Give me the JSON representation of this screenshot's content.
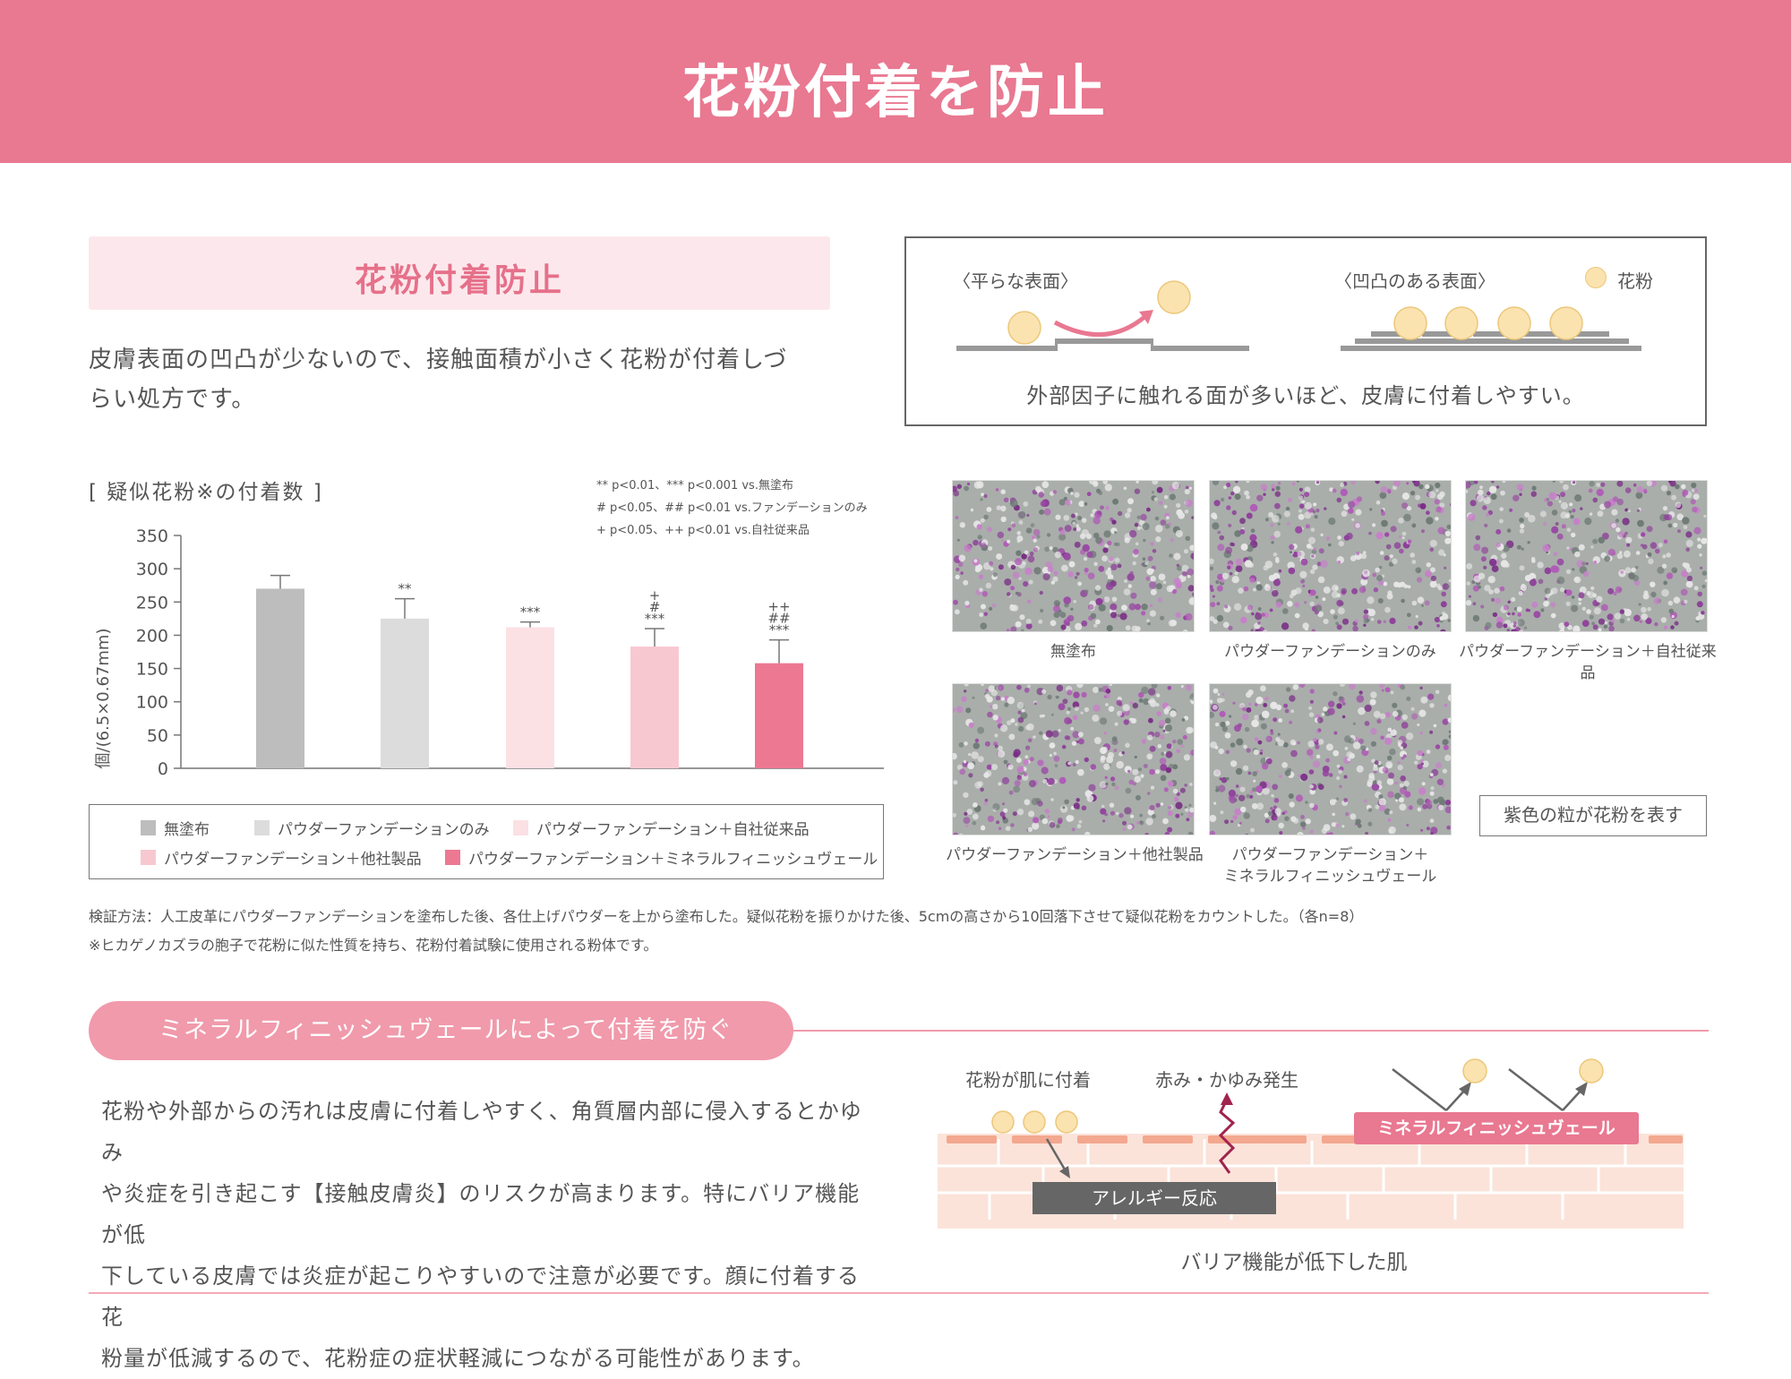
{
  "header": {
    "title": "花粉付着を防止"
  },
  "section1": {
    "heading": "花粉付着防止",
    "intro_line1": "皮膚表面の凹凸が少ないので、接触面積が小さく花粉が付着しづ",
    "intro_line2": "らい処方です。"
  },
  "diagram": {
    "flat_label": "〈平らな表面〉",
    "rough_label": "〈凹凸のある表面〉",
    "pollen_legend": "花粉",
    "caption": "外部因子に触れる面が多いほど、皮膚に付着しやすい。"
  },
  "chart_data": {
    "type": "bar",
    "title": "[ 疑似花粉※の付着数 ]",
    "ylabel": "個/(6.5×0.67mm)",
    "ylim": [
      0,
      350
    ],
    "yticks": [
      "0",
      "50",
      "100",
      "150",
      "200",
      "250",
      "300",
      "350"
    ],
    "categories": [
      "無塗布",
      "パウダーファンデーションのみ",
      "パウダーファンデーション＋自社従来品",
      "パウダーファンデーション＋他社製品",
      "パウダーファンデーション＋ミネラルフィニッシュヴェール"
    ],
    "values": [
      270,
      225,
      212,
      183,
      158
    ],
    "errors": [
      20,
      30,
      8,
      27,
      35
    ],
    "colors": [
      "#bdbdbd",
      "#dcdcdc",
      "#fbe0e4",
      "#f8c8d1",
      "#ec7891"
    ],
    "significance": [
      [
        ""
      ],
      [
        "**"
      ],
      [
        "***"
      ],
      [
        "+",
        "#",
        "***"
      ],
      [
        "++",
        "##",
        "***"
      ]
    ],
    "notes": [
      "** p<0.01、*** p<0.001 vs.無塗布",
      "# p<0.05、## p<0.01 vs.ファンデーションのみ",
      "+ p<0.05、++ p<0.01 vs.自社従来品"
    ]
  },
  "legend": [
    {
      "label": "無塗布",
      "color": "#bdbdbd"
    },
    {
      "label": "パウダーファンデーションのみ",
      "color": "#dcdcdc"
    },
    {
      "label": "パウダーファンデーション＋自社従来品",
      "color": "#fbe0e4"
    },
    {
      "label": "パウダーファンデーション＋他社製品",
      "color": "#f8c8d1"
    },
    {
      "label": "パウダーファンデーション＋ミネラルフィニッシュヴェール",
      "color": "#ec7891"
    }
  ],
  "micro": {
    "captions": [
      "無塗布",
      "パウダーファンデーションのみ",
      "パウダーファンデーション＋自社従来品",
      "パウダーファンデーション＋他社製品",
      "パウダーファンデーション＋",
      "ミネラルフィニッシュヴェール"
    ],
    "purple_note": "紫色の粒が花粉を表す"
  },
  "method": {
    "line1": "検証方法：人工皮革にパウダーファンデーションを塗布した後、各仕上げパウダーを上から塗布した。疑似花粉を振りかけた後、5cmの高さから10回落下させて疑似花粉をカウントした。（各n=8）",
    "line2": "※ヒカゲノカズラの胞子で花粉に似た性質を持ち、花粉付着試験に使用される粉体です。"
  },
  "section2": {
    "pill": "ミネラルフィニッシュヴェールによって付着を防ぐ",
    "body": [
      "花粉や外部からの汚れは皮膚に付着しやすく、角質層内部に侵入するとかゆみ",
      "や炎症を引き起こす【接触皮膚炎】のリスクが高まります。特にバリア機能が低",
      "下している皮膚では炎症が起こりやすいので注意が必要です。顔に付着する花",
      "粉量が低減するので、花粉症の症状軽減につながる可能性があります。"
    ]
  },
  "skin": {
    "pollen_attach": "花粉が肌に付着",
    "itch": "赤み・かゆみ発生",
    "allergy": "アレルギー反応",
    "veil": "ミネラルフィニッシュヴェール",
    "caption": "バリア機能が低下した肌"
  }
}
